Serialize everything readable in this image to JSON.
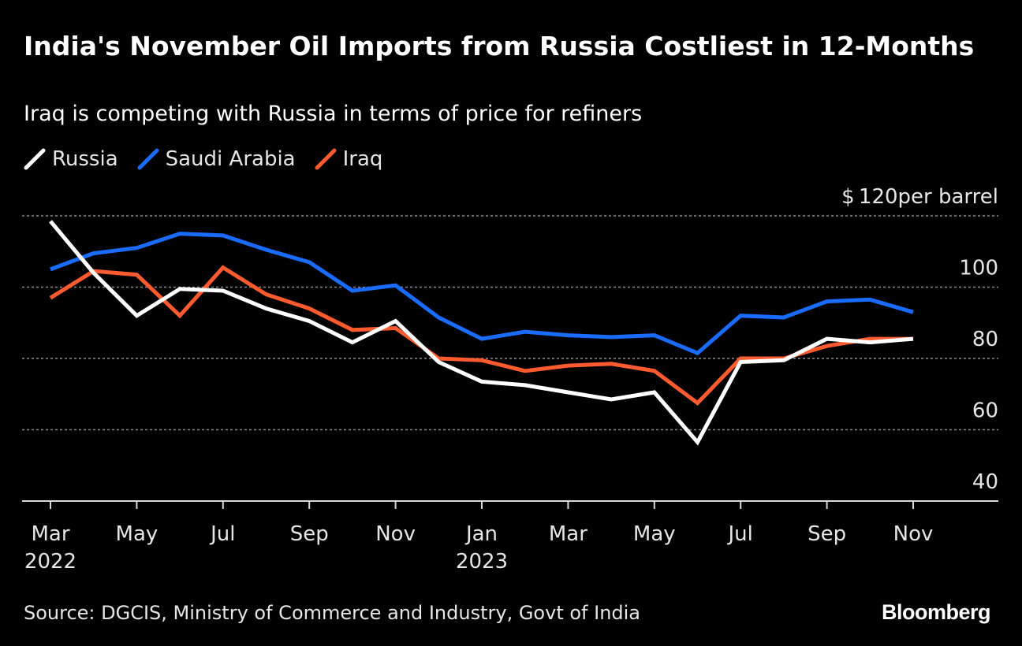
{
  "header": {
    "title": "India's November Oil Imports from Russia Costliest in 12-Months",
    "subtitle": "Iraq is competing with Russia in terms of price for refiners"
  },
  "legend": [
    {
      "label": "Russia",
      "color": "#ffffff"
    },
    {
      "label": "Saudi Arabia",
      "color": "#1a6cff"
    },
    {
      "label": "Iraq",
      "color": "#ff5b2e"
    }
  ],
  "chart_data": {
    "type": "line",
    "title": "India's November Oil Imports from Russia Costliest in 12-Months",
    "subtitle": "Iraq is competing with Russia in terms of price for refiners",
    "x": [
      "Mar 2022",
      "Apr 2022",
      "May 2022",
      "Jun 2022",
      "Jul 2022",
      "Aug 2022",
      "Sep 2022",
      "Oct 2022",
      "Nov 2022",
      "Dec 2022",
      "Jan 2023",
      "Feb 2023",
      "Mar 2023",
      "Apr 2023",
      "May 2023",
      "Jun 2023",
      "Jul 2023",
      "Aug 2023",
      "Sep 2023",
      "Oct 2023",
      "Nov 2023"
    ],
    "series": [
      {
        "name": "Russia",
        "color": "#ffffff",
        "values": [
          118.5,
          104,
          92,
          99.5,
          99,
          94,
          90.5,
          84.5,
          90.5,
          79,
          73.5,
          72.5,
          70.5,
          68.5,
          70.5,
          56.5,
          79,
          79.5,
          85.5,
          84.5,
          85.5
        ]
      },
      {
        "name": "Saudi Arabia",
        "color": "#1a6cff",
        "values": [
          105,
          109.5,
          111,
          115,
          114.5,
          110.5,
          107,
          99,
          100.5,
          91.5,
          85.5,
          87.5,
          86.5,
          86,
          86.5,
          81.5,
          92,
          91.5,
          96,
          96.5,
          93
        ]
      },
      {
        "name": "Iraq",
        "color": "#ff5b2e",
        "values": [
          97,
          104.5,
          103.5,
          92,
          105.5,
          98,
          94,
          88,
          88.5,
          80,
          79.5,
          76.5,
          78,
          78.5,
          76.5,
          67.5,
          80,
          80,
          83.5,
          85.5,
          85.5
        ]
      }
    ],
    "yunit": "$",
    "ylabel_suffix": "per barrel",
    "yticks": [
      40,
      60,
      80,
      100,
      120
    ],
    "ylim": [
      40,
      120
    ],
    "xtick_labels": [
      {
        "month": "Mar",
        "year": "2022"
      },
      {
        "month": "May",
        "year": ""
      },
      {
        "month": "Jul",
        "year": ""
      },
      {
        "month": "Sep",
        "year": ""
      },
      {
        "month": "Nov",
        "year": ""
      },
      {
        "month": "Jan",
        "year": "2023"
      },
      {
        "month": "Mar",
        "year": ""
      },
      {
        "month": "May",
        "year": ""
      },
      {
        "month": "Jul",
        "year": ""
      },
      {
        "month": "Sep",
        "year": ""
      },
      {
        "month": "Nov",
        "year": ""
      }
    ],
    "grid": true,
    "legend_position": "top-left"
  },
  "footer": {
    "source": "Source: DGCIS, Ministry of Commerce and Industry, Govt of India",
    "brand": "Bloomberg"
  }
}
